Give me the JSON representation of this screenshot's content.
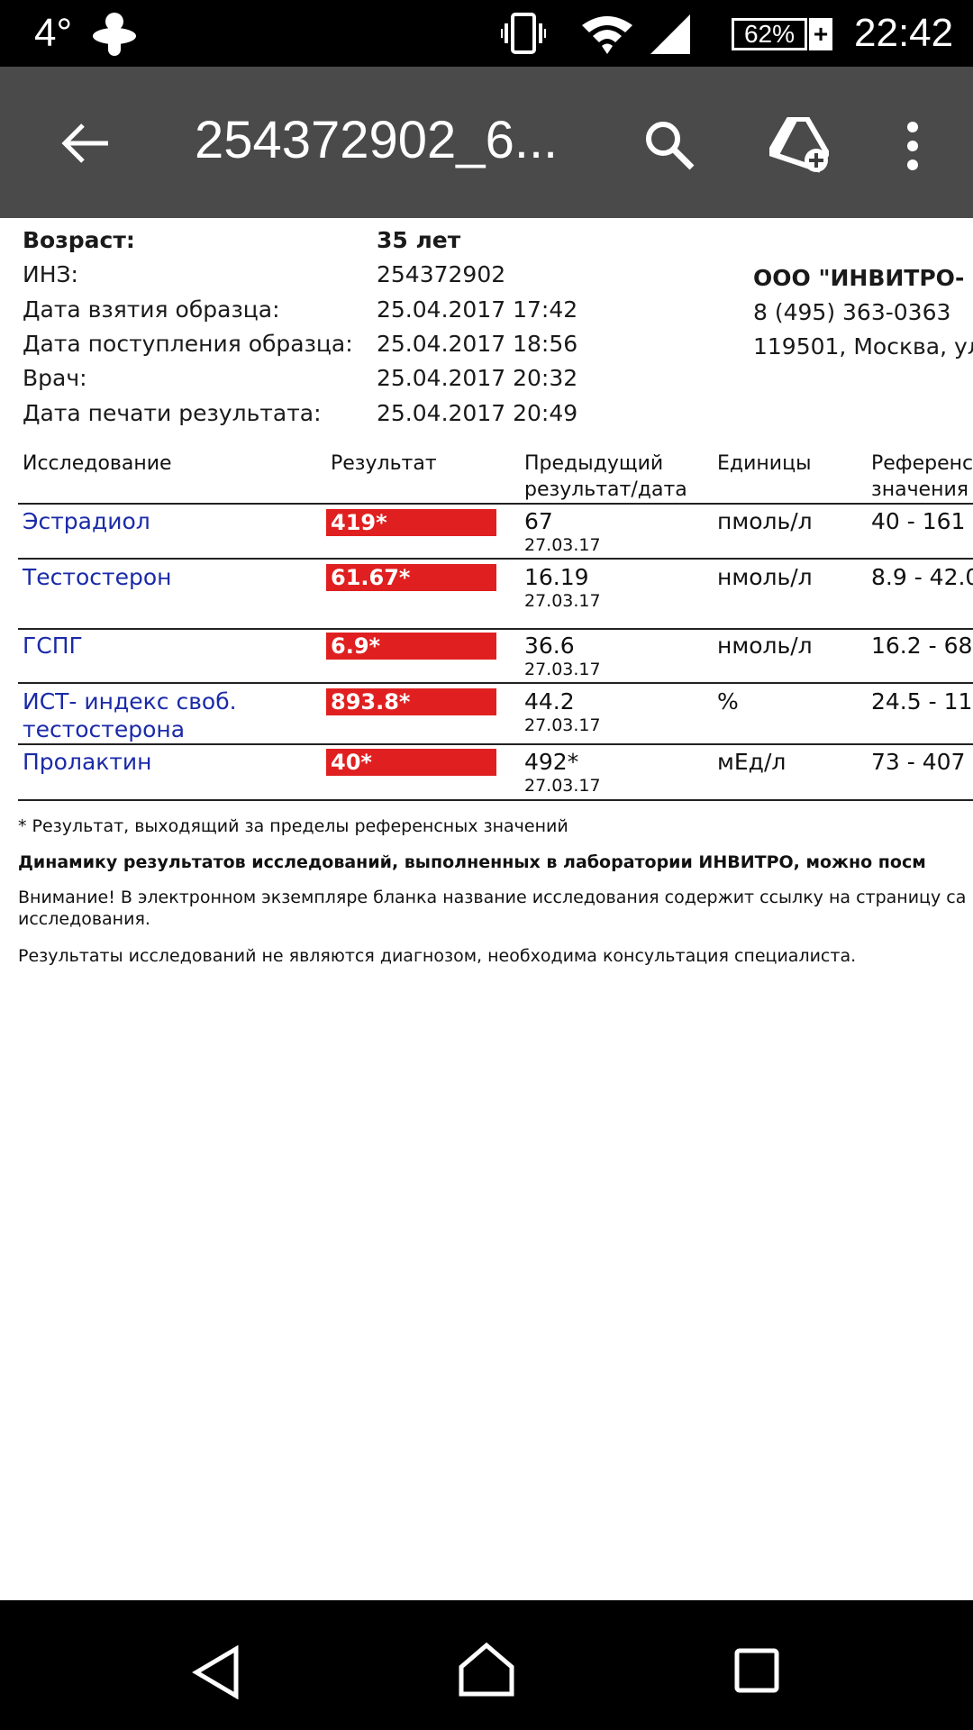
{
  "status_bar": {
    "temperature": "4°",
    "battery": "62%",
    "time": "22:42",
    "icons": [
      "weather-icon",
      "vibrate-icon",
      "wifi-icon",
      "signal-icon",
      "battery-charging-icon"
    ]
  },
  "toolbar": {
    "title": "254372902_6...",
    "icons": [
      "back-arrow-icon",
      "search-icon",
      "google-drive-add-icon",
      "more-vert-icon"
    ]
  },
  "patient": [
    {
      "label": "Возраст:",
      "value": "35 лет"
    },
    {
      "label": "ИНЗ:",
      "value": "254372902"
    },
    {
      "label": "Дата взятия образца:",
      "value": "25.04.2017 17:42"
    },
    {
      "label": "Дата поступления образца:",
      "value": "25.04.2017 18:56"
    },
    {
      "label": "Врач:",
      "value": "25.04.2017 20:32"
    },
    {
      "label": "Дата печати результата:",
      "value": "25.04.2017 20:49"
    }
  ],
  "lab": {
    "name": "ООО \"ИНВИТРО-",
    "phone": "8 (495) 363-0363",
    "address": "119501, Москва, ул"
  },
  "table": {
    "headers": [
      "Исследование",
      "Результат",
      "Предыдущий результат/дата",
      "Единицы",
      "Референс значения"
    ],
    "header_lines": {
      "prev1": "Предыдущий",
      "prev2": "результат/дата",
      "ref1": "Референс",
      "ref2": "значения"
    },
    "rows": [
      {
        "name": "Эстрадиол",
        "result": "419*",
        "prev": "67",
        "prev_date": "27.03.17",
        "unit": "пмоль/л",
        "ref": "40 - 161"
      },
      {
        "name": "Тестостерон",
        "result": "61.67*",
        "prev": "16.19",
        "prev_date": "27.03.17",
        "unit": "нмоль/л",
        "ref": "8.9 - 42.0"
      },
      {
        "name": "ГСПГ",
        "result": "6.9*",
        "prev": "36.6",
        "prev_date": "27.03.17",
        "unit": "нмоль/л",
        "ref": "16.2 - 68"
      },
      {
        "name": "ИСТ- индекс своб.",
        "name2": "тестостерона",
        "result": "893.8*",
        "prev": "44.2",
        "prev_date": "27.03.17",
        "unit": "%",
        "ref": "24.5 - 11"
      },
      {
        "name": "Пролактин",
        "result": "40*",
        "prev": "492*",
        "prev_date": "27.03.17",
        "unit": "мЕд/л",
        "ref": "73 - 407"
      }
    ]
  },
  "notes": {
    "footnote": "* Результат, выходящий за пределы референсных значений",
    "dynamics": "Динамику результатов исследований, выполненных в лаборатории ИНВИТРО, можно посм",
    "warning1": "Внимание! В электронном экземпляре бланка название исследования содержит ссылку на страницу са",
    "warning2": "исследования.",
    "disclaimer": "Результаты исследований не являются диагнозом, необходима консультация специалиста."
  },
  "colors": {
    "result_flag": "#e02020",
    "link": "#1a2aa8",
    "toolbar": "#3c3c3c"
  }
}
